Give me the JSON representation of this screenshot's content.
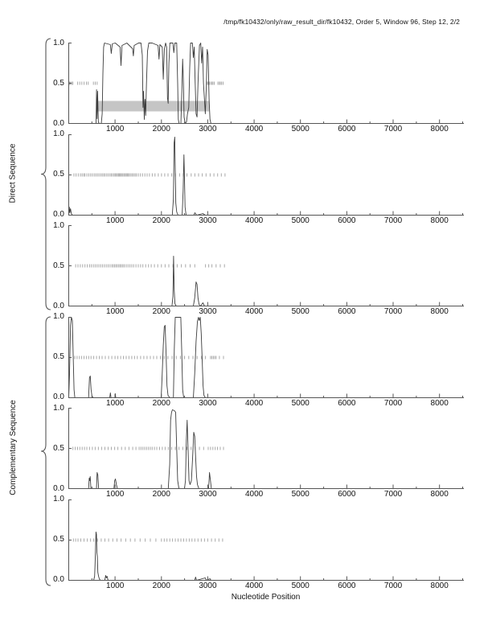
{
  "title": "/tmp/fk10432/only/raw_result_dir/fk10432, Order 5, Window 96, Step 12, 2/2",
  "groups": [
    {
      "label": "Direct Sequence"
    },
    {
      "label": "Complementary Sequence"
    }
  ],
  "axes": {
    "x": {
      "min": 0,
      "max": 8500,
      "major": [
        1000,
        2000,
        3000,
        4000,
        5000,
        6000,
        7000,
        8000
      ],
      "minor_step": 500,
      "label": "Nucleotide Position"
    },
    "y": {
      "min": 0,
      "max": 1,
      "ticks": [
        {
          "v": 1.0,
          "label": "1.0"
        },
        {
          "v": 0.5,
          "label": "0.5"
        },
        {
          "v": 0.0,
          "label": "0.0"
        }
      ]
    }
  },
  "colors": {
    "curve": "#3c3c3c",
    "mid_ticks": "#a9a9a9",
    "highlight_bar": "#c5c5c5",
    "axis": "#555555",
    "text": "#000000"
  },
  "chart_data": [
    {
      "type": "line",
      "name": "direct-frame-1",
      "title": "",
      "x_range": [
        0,
        8500
      ],
      "y_range": [
        0,
        1
      ],
      "grid": false,
      "highlight_bar": {
        "x_start": 600,
        "x_end": 3030,
        "y_bottom": 0.15,
        "y_top": 0.28
      },
      "mid_ticks": [
        18,
        40,
        62,
        88,
        192,
        238,
        282,
        332,
        382,
        420,
        532,
        572,
        612,
        2990,
        3012,
        3032,
        3062,
        3090,
        3112,
        3142,
        3218,
        3248,
        3272,
        3298,
        3330
      ],
      "curve": [
        [
          0,
          0
        ],
        [
          590,
          0
        ],
        [
          600,
          0.42
        ],
        [
          612,
          0.06
        ],
        [
          622,
          0.4
        ],
        [
          638,
          0.02
        ],
        [
          658,
          0
        ],
        [
          702,
          0
        ],
        [
          722,
          0.12
        ],
        [
          738,
          0.62
        ],
        [
          752,
          0.95
        ],
        [
          772,
          1
        ],
        [
          898,
          0.98
        ],
        [
          918,
          0.87
        ],
        [
          940,
          0.99
        ],
        [
          1005,
          1
        ],
        [
          1108,
          0.95
        ],
        [
          1128,
          0.72
        ],
        [
          1150,
          0.97
        ],
        [
          1255,
          1
        ],
        [
          1378,
          0.93
        ],
        [
          1395,
          0.84
        ],
        [
          1412,
          0.97
        ],
        [
          1505,
          1
        ],
        [
          1560,
          1
        ],
        [
          1588,
          0.85
        ],
        [
          1603,
          0.2
        ],
        [
          1615,
          0.4
        ],
        [
          1630,
          0.05
        ],
        [
          1645,
          0.3
        ],
        [
          1660,
          0.1
        ],
        [
          1678,
          0.5
        ],
        [
          1700,
          0.9
        ],
        [
          1728,
          1
        ],
        [
          1800,
          1
        ],
        [
          1928,
          0.97
        ],
        [
          1948,
          0.8
        ],
        [
          1968,
          0.98
        ],
        [
          2018,
          0.95
        ],
        [
          2040,
          0.55
        ],
        [
          2062,
          0.92
        ],
        [
          2090,
          1
        ],
        [
          2112,
          0.95
        ],
        [
          2130,
          0.32
        ],
        [
          2145,
          0.25
        ],
        [
          2162,
          0.75
        ],
        [
          2182,
          1
        ],
        [
          2248,
          1
        ],
        [
          2268,
          0.88
        ],
        [
          2290,
          1
        ],
        [
          2330,
          1
        ],
        [
          2350,
          0.5
        ],
        [
          2365,
          0.05
        ],
        [
          2382,
          0
        ],
        [
          2420,
          0
        ],
        [
          2440,
          0.4
        ],
        [
          2458,
          0.8
        ],
        [
          2475,
          0.5
        ],
        [
          2490,
          0.08
        ],
        [
          2512,
          0
        ],
        [
          2542,
          0.02
        ],
        [
          2562,
          0.12
        ],
        [
          2590,
          0.2
        ],
        [
          2610,
          0.7
        ],
        [
          2630,
          1
        ],
        [
          2668,
          1
        ],
        [
          2688,
          0.82
        ],
        [
          2708,
          0.95
        ],
        [
          2728,
          0.5
        ],
        [
          2748,
          0.12
        ],
        [
          2768,
          0.08
        ],
        [
          2790,
          0.5
        ],
        [
          2820,
          0.97
        ],
        [
          2848,
          1
        ],
        [
          2868,
          0.75
        ],
        [
          2888,
          0.95
        ],
        [
          2908,
          0.5
        ],
        [
          2928,
          0.3
        ],
        [
          2948,
          0.12
        ],
        [
          2968,
          0.45
        ],
        [
          2988,
          0.92
        ],
        [
          3008,
          0.85
        ],
        [
          3028,
          0.3
        ],
        [
          3048,
          0.05
        ],
        [
          3068,
          0
        ],
        [
          8500,
          0
        ]
      ]
    },
    {
      "type": "line",
      "name": "direct-frame-2",
      "title": "",
      "x_range": [
        0,
        8500
      ],
      "y_range": [
        0,
        1
      ],
      "grid": false,
      "highlight_bar": null,
      "mid_ticks": [
        112,
        158,
        205,
        252,
        288,
        322,
        348,
        392,
        432,
        472,
        508,
        548,
        582,
        618,
        652,
        688,
        722,
        752,
        782,
        818,
        852,
        888,
        918,
        948,
        978,
        1002,
        1028,
        1052,
        1078,
        1098,
        1118,
        1142,
        1168,
        1192,
        1218,
        1242,
        1262,
        1288,
        1312,
        1342,
        1372,
        1402,
        1432,
        1462,
        1502,
        1548,
        1592,
        1642,
        1692,
        1742,
        1802,
        1862,
        1932,
        2002,
        2072,
        2142,
        2222,
        2302,
        2392,
        2472,
        2552,
        2642,
        2722,
        2802,
        2882,
        2962,
        3052,
        3132,
        3212,
        3292,
        3372
      ],
      "curve": [
        [
          0,
          0
        ],
        [
          12,
          0.1
        ],
        [
          22,
          0.03
        ],
        [
          38,
          0.08
        ],
        [
          55,
          0.02
        ],
        [
          80,
          0
        ],
        [
          2235,
          0
        ],
        [
          2258,
          0.2
        ],
        [
          2275,
          0.9
        ],
        [
          2288,
          0.97
        ],
        [
          2298,
          0.55
        ],
        [
          2310,
          0.15
        ],
        [
          2330,
          0.04
        ],
        [
          2360,
          0
        ],
        [
          2448,
          0
        ],
        [
          2468,
          0.3
        ],
        [
          2485,
          0.75
        ],
        [
          2498,
          0.45
        ],
        [
          2510,
          0.1
        ],
        [
          2532,
          0
        ],
        [
          2700,
          0
        ],
        [
          2722,
          0.03
        ],
        [
          2760,
          0
        ],
        [
          2895,
          0.02
        ],
        [
          2945,
          0
        ],
        [
          8500,
          0
        ]
      ]
    },
    {
      "type": "line",
      "name": "direct-frame-3",
      "title": "",
      "x_range": [
        0,
        8500
      ],
      "y_range": [
        0,
        1
      ],
      "grid": false,
      "highlight_bar": null,
      "mid_ticks": [
        150,
        200,
        250,
        300,
        350,
        400,
        450,
        490,
        530,
        570,
        610,
        650,
        690,
        730,
        770,
        810,
        850,
        890,
        930,
        960,
        990,
        1020,
        1050,
        1080,
        1110,
        1140,
        1170,
        1200,
        1240,
        1280,
        1320,
        1360,
        1400,
        1450,
        1500,
        1550,
        1600,
        1660,
        1720,
        1780,
        1850,
        1920,
        2000,
        2080,
        2160,
        2250,
        2340,
        2430,
        2520,
        2620,
        2720,
        2950,
        3020,
        3090,
        3180,
        3270,
        3360
      ],
      "curve": [
        [
          0,
          0
        ],
        [
          2228,
          0
        ],
        [
          2248,
          0.12
        ],
        [
          2262,
          0.62
        ],
        [
          2276,
          0.2
        ],
        [
          2292,
          0.03
        ],
        [
          2318,
          0
        ],
        [
          2688,
          0
        ],
        [
          2718,
          0.1
        ],
        [
          2748,
          0.3
        ],
        [
          2768,
          0.27
        ],
        [
          2790,
          0.1
        ],
        [
          2812,
          0.02
        ],
        [
          2845,
          0
        ],
        [
          2895,
          0.04
        ],
        [
          2930,
          0
        ],
        [
          8500,
          0
        ]
      ]
    },
    {
      "type": "line",
      "name": "complementary-frame-1",
      "title": "",
      "x_range": [
        0,
        8500
      ],
      "y_range": [
        0,
        1
      ],
      "grid": false,
      "highlight_bar": null,
      "mid_ticks": [
        130,
        180,
        230,
        280,
        330,
        380,
        430,
        480,
        540,
        600,
        660,
        720,
        790,
        860,
        930,
        1000,
        1060,
        1120,
        1180,
        1240,
        1300,
        1360,
        1420,
        1480,
        1550,
        1620,
        1690,
        1760,
        1830,
        1900,
        1980,
        2060,
        2140,
        2230,
        2320,
        2410,
        2500,
        2590,
        2680,
        2770,
        2860,
        2950,
        3060,
        3090,
        3120,
        3150,
        3180,
        3250,
        3340
      ],
      "curve": [
        [
          0,
          0
        ],
        [
          18,
          0.3
        ],
        [
          38,
          0.9
        ],
        [
          58,
          1
        ],
        [
          78,
          0.96
        ],
        [
          98,
          0.5
        ],
        [
          114,
          0.1
        ],
        [
          132,
          0
        ],
        [
          428,
          0
        ],
        [
          448,
          0.25
        ],
        [
          465,
          0.27
        ],
        [
          482,
          0.1
        ],
        [
          502,
          0.02
        ],
        [
          530,
          0
        ],
        [
          885,
          0
        ],
        [
          898,
          0.06
        ],
        [
          912,
          0
        ],
        [
          995,
          0
        ],
        [
          1005,
          0.05
        ],
        [
          1015,
          0
        ],
        [
          1995,
          0
        ],
        [
          2018,
          0.3
        ],
        [
          2040,
          0.65
        ],
        [
          2060,
          0.88
        ],
        [
          2080,
          0.9
        ],
        [
          2100,
          0.55
        ],
        [
          2120,
          0.15
        ],
        [
          2142,
          0.03
        ],
        [
          2180,
          0
        ],
        [
          2258,
          0
        ],
        [
          2278,
          0.6
        ],
        [
          2298,
          1
        ],
        [
          2418,
          1
        ],
        [
          2438,
          0.6
        ],
        [
          2458,
          0.1
        ],
        [
          2480,
          0
        ],
        [
          2688,
          0
        ],
        [
          2718,
          0.3
        ],
        [
          2748,
          0.7
        ],
        [
          2778,
          0.95
        ],
        [
          2800,
          1
        ],
        [
          2818,
          0.96
        ],
        [
          2838,
          1
        ],
        [
          2858,
          0.8
        ],
        [
          2878,
          0.5
        ],
        [
          2898,
          0.15
        ],
        [
          2918,
          0.03
        ],
        [
          2948,
          0
        ],
        [
          8500,
          0
        ]
      ]
    },
    {
      "type": "line",
      "name": "complementary-frame-2",
      "title": "",
      "x_range": [
        0,
        8500
      ],
      "y_range": [
        0,
        1
      ],
      "grid": false,
      "highlight_bar": null,
      "mid_ticks": [
        90,
        140,
        190,
        240,
        290,
        340,
        390,
        450,
        510,
        570,
        640,
        710,
        780,
        850,
        920,
        990,
        1060,
        1140,
        1220,
        1300,
        1380,
        1450,
        1520,
        1560,
        1600,
        1640,
        1680,
        1720,
        1760,
        1800,
        1850,
        1900,
        1960,
        2020,
        2080,
        2150,
        2220,
        2300,
        2380,
        2460,
        2550,
        2640,
        2730,
        2820,
        2910,
        3010,
        3060,
        3110,
        3160,
        3210,
        3270,
        3340
      ],
      "curve": [
        [
          0,
          0
        ],
        [
          428,
          0
        ],
        [
          442,
          0.13
        ],
        [
          452,
          0.1
        ],
        [
          463,
          0.15
        ],
        [
          478,
          0
        ],
        [
          598,
          0
        ],
        [
          612,
          0.2
        ],
        [
          628,
          0.17
        ],
        [
          645,
          0
        ],
        [
          975,
          0
        ],
        [
          992,
          0.1
        ],
        [
          1008,
          0.12
        ],
        [
          1028,
          0.05
        ],
        [
          1050,
          0
        ],
        [
          2148,
          0
        ],
        [
          2178,
          0.3
        ],
        [
          2198,
          0.85
        ],
        [
          2218,
          0.95
        ],
        [
          2238,
          0.98
        ],
        [
          2278,
          0.97
        ],
        [
          2308,
          0.95
        ],
        [
          2330,
          0.5
        ],
        [
          2350,
          0.1
        ],
        [
          2378,
          0
        ],
        [
          2498,
          0
        ],
        [
          2518,
          0.1
        ],
        [
          2538,
          0.6
        ],
        [
          2555,
          0.85
        ],
        [
          2575,
          0.5
        ],
        [
          2595,
          0.1
        ],
        [
          2618,
          0.05
        ],
        [
          2648,
          0.1
        ],
        [
          2678,
          0.45
        ],
        [
          2698,
          0.7
        ],
        [
          2718,
          0.65
        ],
        [
          2738,
          0.4
        ],
        [
          2758,
          0.15
        ],
        [
          2778,
          0.05
        ],
        [
          2808,
          0
        ],
        [
          3018,
          0
        ],
        [
          3038,
          0.2
        ],
        [
          3058,
          0.1
        ],
        [
          3078,
          0
        ],
        [
          8500,
          0
        ]
      ]
    },
    {
      "type": "line",
      "name": "complementary-frame-3",
      "title": "",
      "x_range": [
        0,
        8500
      ],
      "y_range": [
        0,
        1
      ],
      "grid": false,
      "highlight_bar": null,
      "mid_ticks": [
        100,
        150,
        200,
        260,
        330,
        400,
        470,
        540,
        620,
        700,
        780,
        860,
        950,
        1040,
        1130,
        1230,
        1330,
        1430,
        1540,
        1650,
        1760,
        1880,
        2000,
        2060,
        2120,
        2180,
        2240,
        2300,
        2360,
        2420,
        2480,
        2540,
        2600,
        2660,
        2720,
        2790,
        2860,
        2930,
        3000,
        3080,
        3160,
        3240,
        3320
      ],
      "curve": [
        [
          0,
          0
        ],
        [
          538,
          0
        ],
        [
          558,
          0.05
        ],
        [
          574,
          0.3
        ],
        [
          588,
          0.6
        ],
        [
          598,
          0.57
        ],
        [
          608,
          0.35
        ],
        [
          618,
          0.3
        ],
        [
          628,
          0.1
        ],
        [
          643,
          0.05
        ],
        [
          660,
          0.02
        ],
        [
          680,
          0
        ],
        [
          778,
          0
        ],
        [
          798,
          0.06
        ],
        [
          812,
          0.03
        ],
        [
          828,
          0.05
        ],
        [
          848,
          0
        ],
        [
          2718,
          0
        ],
        [
          2738,
          0.04
        ],
        [
          2758,
          0
        ],
        [
          2945,
          0.03
        ],
        [
          2968,
          0
        ],
        [
          3048,
          0.02
        ],
        [
          3068,
          0
        ],
        [
          8500,
          0
        ]
      ]
    }
  ]
}
